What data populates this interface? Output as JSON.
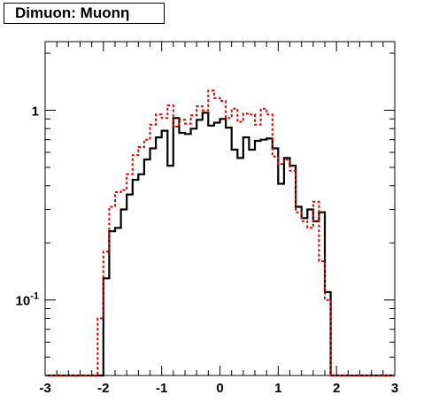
{
  "chart_data": {
    "type": "line",
    "title": "Dimuon: Muonη",
    "xlabel": "",
    "ylabel": "",
    "xlim": [
      -3,
      3
    ],
    "ylim": [
      0.04,
      2.3
    ],
    "ylog": true,
    "grid": false,
    "x_ticks": [
      "-3",
      "-2",
      "-1",
      "0",
      "1",
      "2",
      "3"
    ],
    "y_tick_labels": [
      {
        "value": 1,
        "base": "1",
        "exp": ""
      },
      {
        "value": 0.1,
        "base": "10",
        "exp": "-1"
      }
    ],
    "bin_edges": [
      -3.0,
      -2.9,
      -2.8,
      -2.7,
      -2.6,
      -2.5,
      -2.4,
      -2.3,
      -2.2,
      -2.1,
      -2.0,
      -1.9,
      -1.8,
      -1.7,
      -1.6,
      -1.5,
      -1.4,
      -1.3,
      -1.2,
      -1.1,
      -1.0,
      -0.9,
      -0.8,
      -0.7,
      -0.6,
      -0.5,
      -0.4,
      -0.3,
      -0.2,
      -0.1,
      0.0,
      0.1,
      0.2,
      0.3,
      0.4,
      0.5,
      0.6,
      0.7,
      0.8,
      0.9,
      1.0,
      1.1,
      1.2,
      1.3,
      1.4,
      1.5,
      1.6,
      1.7,
      1.8,
      1.9,
      2.0,
      2.1,
      2.2,
      2.3,
      2.4,
      2.5,
      2.6,
      2.7,
      2.8,
      2.9,
      3.0
    ],
    "series": [
      {
        "color": "#000000",
        "dash": "solid",
        "values": [
          0.04,
          0.04,
          0.04,
          0.04,
          0.04,
          0.04,
          0.04,
          0.04,
          0.04,
          0.04,
          0.13,
          0.23,
          0.24,
          0.3,
          0.36,
          0.43,
          0.46,
          0.55,
          0.63,
          0.72,
          0.78,
          0.51,
          0.91,
          0.76,
          0.75,
          0.8,
          0.89,
          0.97,
          0.83,
          0.86,
          0.9,
          0.81,
          0.62,
          0.56,
          0.72,
          0.62,
          0.69,
          0.7,
          0.71,
          0.63,
          0.41,
          0.56,
          0.51,
          0.31,
          0.27,
          0.3,
          0.26,
          0.29,
          0.11,
          0.04,
          0.04,
          0.04,
          0.04,
          0.04,
          0.04,
          0.04,
          0.04,
          0.04,
          0.04,
          0.04
        ]
      },
      {
        "color": "#e00000",
        "dash": "dotted",
        "values": [
          0.04,
          0.04,
          0.04,
          0.04,
          0.04,
          0.04,
          0.04,
          0.04,
          0.04,
          0.08,
          0.18,
          0.31,
          0.37,
          0.38,
          0.46,
          0.58,
          0.64,
          0.7,
          0.84,
          0.95,
          0.91,
          1.06,
          0.82,
          0.89,
          0.85,
          0.94,
          1.05,
          1.0,
          1.27,
          1.16,
          1.12,
          0.91,
          1.02,
          0.87,
          0.96,
          0.95,
          0.84,
          1.02,
          0.95,
          0.57,
          0.52,
          0.55,
          0.48,
          0.29,
          0.26,
          0.24,
          0.33,
          0.16,
          0.1,
          0.04,
          0.04,
          0.04,
          0.04,
          0.04,
          0.04,
          0.04,
          0.04,
          0.04,
          0.04,
          0.04
        ]
      }
    ]
  }
}
